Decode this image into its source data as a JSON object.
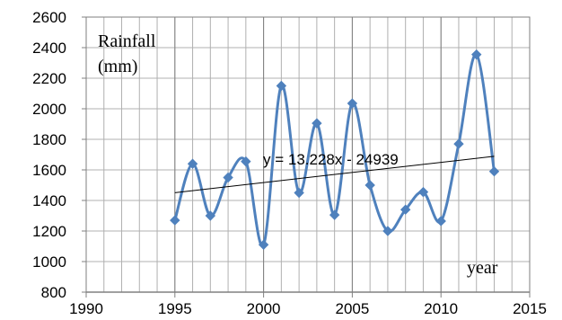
{
  "chart_data": {
    "type": "scatter",
    "style": "smoothed line with diamond markers",
    "x": [
      1995,
      1996,
      1997,
      1998,
      1999,
      2000,
      2001,
      2002,
      2003,
      2004,
      2005,
      2006,
      2007,
      2008,
      2009,
      2010,
      2011,
      2012,
      2013
    ],
    "series": [
      {
        "values": [
          1270,
          1640,
          1300,
          1550,
          1655,
          1110,
          2150,
          1450,
          1905,
          1305,
          2035,
          1500,
          1200,
          1340,
          1455,
          1265,
          1770,
          2355,
          1590
        ],
        "color": "#4f81bd"
      }
    ],
    "trendline": {
      "equation_label": "y = 13.228x - 24939",
      "slope": 13.228,
      "intercept": -24939,
      "x_range": [
        1995,
        2013
      ],
      "color": "#000000"
    },
    "xlim": [
      1990,
      2015
    ],
    "ylim": [
      800,
      2600
    ],
    "x_ticks": [
      "1990",
      "1995",
      "2000",
      "2005",
      "2010",
      "2015"
    ],
    "y_ticks": [
      "800",
      "1000",
      "1200",
      "1400",
      "1600",
      "1800",
      "2000",
      "2200",
      "2400",
      "2600"
    ],
    "grid": true,
    "annotations": {
      "ylabel_line1": "Rainfall",
      "ylabel_line2": "(mm)",
      "xlabel": "year"
    }
  }
}
